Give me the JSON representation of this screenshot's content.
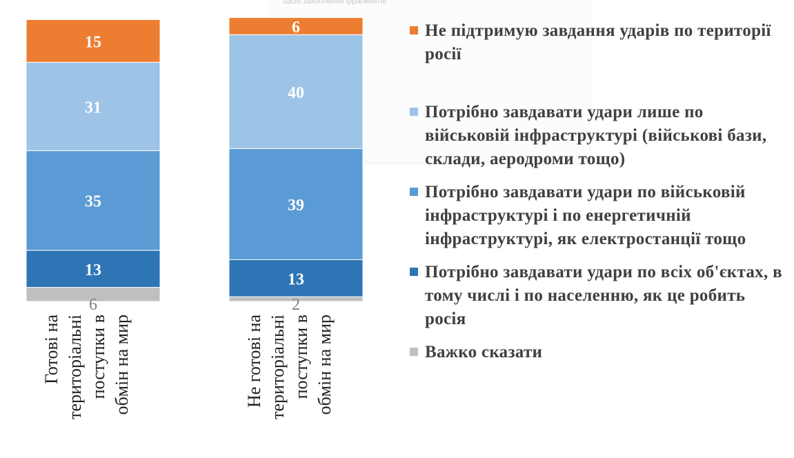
{
  "chart_data": {
    "type": "bar",
    "stacked": true,
    "orientation": "vertical",
    "categories": [
      "Готові на територіальні поступки в обмін на мир",
      "Не готові на територіальні поступки в обмін на мир"
    ],
    "series": [
      {
        "name": "Важко сказати",
        "values": [
          6,
          2
        ],
        "color": "#bfbfbf"
      },
      {
        "name": "Потрібно завдавати удари по всіх об'єктах, в тому числі і по населенню, як це робить росія",
        "values": [
          13,
          13
        ],
        "color": "#2e75b6"
      },
      {
        "name": "Потрібно завдавати удари по військовій інфраструктурі і по енергетичній інфраструктурі, як електростанції тощо",
        "values": [
          35,
          39
        ],
        "color": "#5b9bd5"
      },
      {
        "name": "Потрібно завдавати удари  лише по військовій інфраструктурі (військові бази, склади, аеродроми тощо)",
        "values": [
          31,
          40
        ],
        "color": "#9dc3e6"
      },
      {
        "name": "Не підтримую завдання ударів по території росії",
        "values": [
          15,
          6
        ],
        "color": "#ed7d31"
      }
    ],
    "ylim": [
      0,
      100
    ],
    "grid": false,
    "legend_position": "right"
  },
  "legend": {
    "items": [
      {
        "label": "Не підтримую завдання ударів по території росії",
        "color": "#ed7d31"
      },
      {
        "label": "Потрібно завдавати удари  лише по військовій інфраструктурі (військові бази, склади, аеродроми тощо)",
        "color": "#9dc3e6"
      },
      {
        "label": "Потрібно завдавати удари по військовій інфраструктурі і по енергетичній інфраструктурі, як електростанції тощо",
        "color": "#5b9bd5"
      },
      {
        "label": "Потрібно завдавати удари по всіх об'єктах, в тому числі і по населенню, як це робить росія",
        "color": "#2e75b6"
      },
      {
        "label": "Важко сказати",
        "color": "#bfbfbf"
      }
    ]
  },
  "overlay": {
    "title": "Засіб захоплення фрагментів"
  },
  "category_label_lines": [
    [
      "Готові на",
      "територіальні",
      "поступки в",
      "обмін на мир"
    ],
    [
      "Не готові на",
      "територіальні",
      "поступки в",
      "обмін на мир"
    ]
  ]
}
